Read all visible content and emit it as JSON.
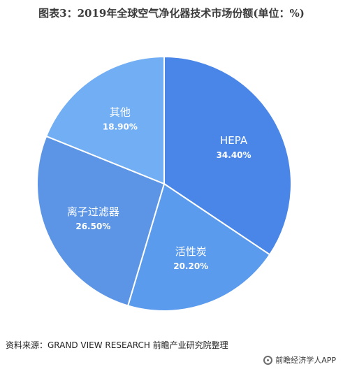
{
  "title": "图表3：2019年全球空气净化器技术市场份额(单位：%)",
  "source": "资料来源：GRAND VIEW RESEARCH 前瞻产业研究院整理",
  "logo_text": "前瞻经济学人APP",
  "colors": {
    "HEPA": "#4a86e8",
    "活性炭": "#5b9bee",
    "离子过滤器": "#5c95e6",
    "其他": "#72aef3",
    "stroke": "#ffffff",
    "label": "#ffffff"
  },
  "chart_data": {
    "type": "pie",
    "title": "图表3：2019年全球空气净化器技术市场份额(单位：%)",
    "categories": [
      "HEPA",
      "活性炭",
      "离子过滤器",
      "其他"
    ],
    "values": [
      34.4,
      20.2,
      26.5,
      18.9
    ],
    "value_labels": [
      "34.40%",
      "20.20%",
      "26.50%",
      "18.90%"
    ],
    "start_angle": "12 o'clock",
    "direction": "clockwise",
    "legend": "none (labels on slices)"
  }
}
